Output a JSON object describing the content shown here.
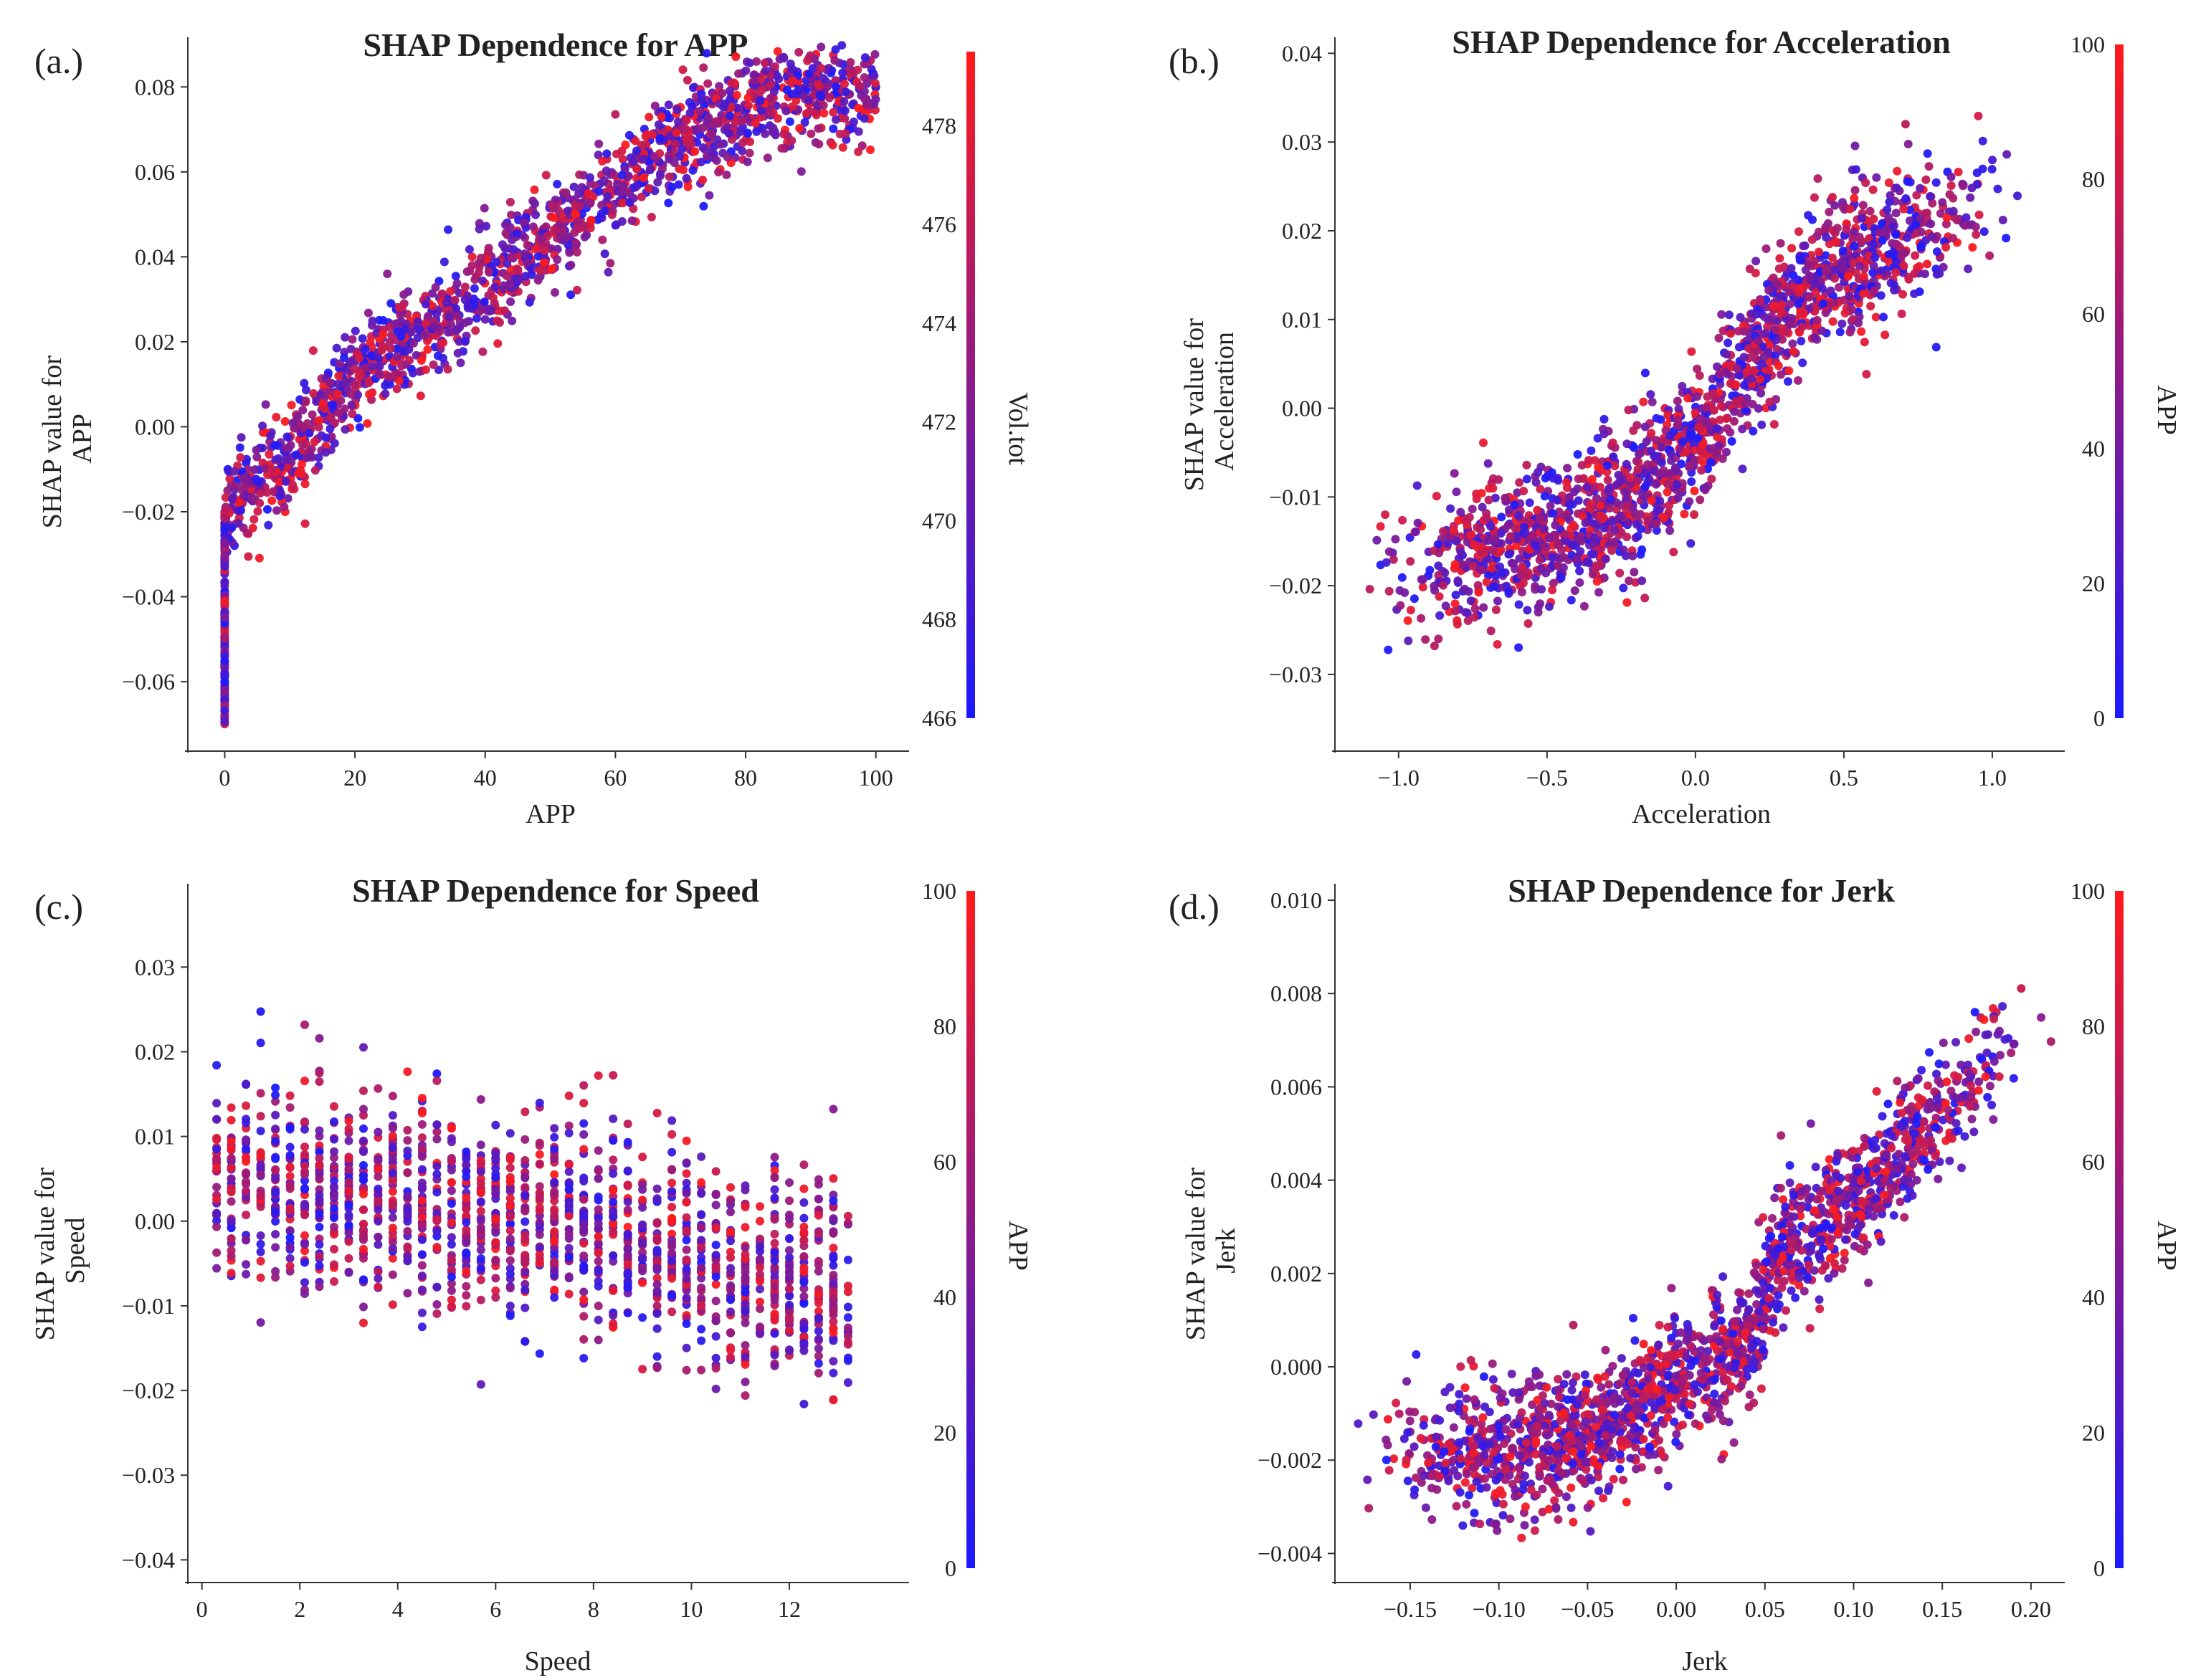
{
  "figure": {
    "colors": {
      "low": "#1a1aff",
      "mid": "#8b1a8b",
      "high": "#ff1a1a",
      "axis": "#333333"
    }
  },
  "chart_data": [
    {
      "type": "scatter",
      "panel": "(a.)",
      "title": "SHAP Dependence for APP",
      "xlabel": "APP",
      "ylabel": [
        "SHAP value for",
        "APP"
      ],
      "xlim": [
        -5,
        104
      ],
      "ylim": [
        -0.075,
        0.09
      ],
      "xticks": [
        "0",
        "20",
        "40",
        "60",
        "80",
        "100"
      ],
      "xtick_values": [
        0,
        20,
        40,
        60,
        80,
        100
      ],
      "yticks": [
        "−0.06",
        "−0.04",
        "−0.02",
        "0.00",
        "0.02",
        "0.04",
        "0.06",
        "0.08"
      ],
      "ytick_values": [
        -0.06,
        -0.04,
        -0.02,
        0.0,
        0.02,
        0.04,
        0.06,
        0.08
      ],
      "colorbar": {
        "label": "Vol.tot",
        "range": [
          466,
          479.5
        ],
        "ticks": [
          "466",
          "468",
          "470",
          "472",
          "474",
          "476",
          "478"
        ],
        "tick_values": [
          466,
          468,
          470,
          472,
          474,
          476,
          478
        ]
      },
      "trend": [
        [
          0,
          -0.022
        ],
        [
          2,
          -0.016
        ],
        [
          10,
          -0.008
        ],
        [
          15,
          0.003
        ],
        [
          20,
          0.012
        ],
        [
          30,
          0.022
        ],
        [
          40,
          0.033
        ],
        [
          50,
          0.045
        ],
        [
          60,
          0.056
        ],
        [
          70,
          0.068
        ],
        [
          80,
          0.076
        ],
        [
          90,
          0.079
        ],
        [
          100,
          0.08
        ]
      ],
      "spread": 0.006,
      "n": 1800
    },
    {
      "type": "scatter",
      "panel": "(b.)",
      "title": "SHAP Dependence for Acceleration",
      "xlabel": "Acceleration",
      "ylabel": [
        "SHAP value for",
        "Acceleration"
      ],
      "xlim": [
        -1.2,
        1.22
      ],
      "ylim": [
        -0.038,
        0.041
      ],
      "xticks": [
        "−1.0",
        "−0.5",
        "0.0",
        "0.5",
        "1.0"
      ],
      "xtick_values": [
        -1.0,
        -0.5,
        0.0,
        0.5,
        1.0
      ],
      "yticks": [
        "−0.03",
        "−0.02",
        "−0.01",
        "0.00",
        "0.01",
        "0.02",
        "0.03",
        "0.04"
      ],
      "ytick_values": [
        -0.03,
        -0.02,
        -0.01,
        0.0,
        0.01,
        0.02,
        0.03,
        0.04
      ],
      "colorbar": {
        "label": "APP",
        "range": [
          0,
          100
        ],
        "ticks": [
          "0",
          "20",
          "40",
          "60",
          "80",
          "100"
        ],
        "tick_values": [
          0,
          20,
          40,
          60,
          80,
          100
        ]
      },
      "trend": [
        [
          -1.1,
          -0.02
        ],
        [
          -0.7,
          -0.016
        ],
        [
          -0.4,
          -0.014
        ],
        [
          -0.2,
          -0.01
        ],
        [
          0.0,
          -0.004
        ],
        [
          0.15,
          0.004
        ],
        [
          0.3,
          0.011
        ],
        [
          0.5,
          0.016
        ],
        [
          0.8,
          0.02
        ],
        [
          1.05,
          0.026
        ]
      ],
      "spread": 0.004,
      "n": 1800
    },
    {
      "type": "scatter",
      "panel": "(c.)",
      "title": "SHAP Dependence for Speed",
      "xlabel": "Speed",
      "ylabel": [
        "SHAP value for",
        "Speed"
      ],
      "xlim": [
        -0.2,
        14.3
      ],
      "ylim": [
        -0.042,
        0.039
      ],
      "xticks": [
        "0",
        "2",
        "4",
        "6",
        "8",
        "10",
        "12"
      ],
      "xtick_values": [
        0,
        2,
        4,
        6,
        8,
        10,
        12
      ],
      "yticks": [
        "−0.04",
        "−0.03",
        "−0.02",
        "−0.01",
        "0.00",
        "0.01",
        "0.02",
        "0.03"
      ],
      "ytick_values": [
        -0.04,
        -0.03,
        -0.02,
        -0.01,
        0.0,
        0.01,
        0.02,
        0.03
      ],
      "colorbar": {
        "label": "APP",
        "range": [
          0,
          100
        ],
        "ticks": [
          "0",
          "20",
          "40",
          "60",
          "80",
          "100"
        ],
        "tick_values": [
          0,
          20,
          40,
          60,
          80,
          100
        ]
      },
      "trend": [
        [
          0.3,
          0.004
        ],
        [
          3,
          0.003
        ],
        [
          4,
          0.002
        ],
        [
          7,
          0.0
        ],
        [
          10,
          -0.004
        ],
        [
          10.5,
          -0.006
        ],
        [
          13,
          -0.008
        ]
      ],
      "spread": 0.006,
      "n": 1600
    },
    {
      "type": "scatter",
      "panel": "(d.)",
      "title": "SHAP Dependence for Jerk",
      "xlabel": "Jerk",
      "ylabel": [
        "SHAP value for",
        "Jerk"
      ],
      "xlim": [
        -0.19,
        0.215
      ],
      "ylim": [
        -0.0045,
        0.0102
      ],
      "xticks": [
        "−0.15",
        "−0.10",
        "−0.05",
        "0.00",
        "0.05",
        "0.10",
        "0.15",
        "0.20"
      ],
      "xtick_values": [
        -0.15,
        -0.1,
        -0.05,
        0.0,
        0.05,
        0.1,
        0.15,
        0.2
      ],
      "yticks": [
        "−0.004",
        "−0.002",
        "0.000",
        "0.002",
        "0.004",
        "0.006",
        "0.008",
        "0.010"
      ],
      "ytick_values": [
        -0.004,
        -0.002,
        0.0,
        0.002,
        0.004,
        0.006,
        0.008,
        0.01
      ],
      "colorbar": {
        "label": "APP",
        "range": [
          0,
          100
        ],
        "ticks": [
          "0",
          "20",
          "40",
          "60",
          "80",
          "100"
        ],
        "tick_values": [
          0,
          20,
          40,
          60,
          80,
          100
        ]
      },
      "trend": [
        [
          -0.17,
          -0.0015
        ],
        [
          -0.12,
          -0.002
        ],
        [
          -0.05,
          -0.0015
        ],
        [
          0.0,
          -0.0003
        ],
        [
          0.04,
          0.0005
        ],
        [
          0.06,
          0.0025
        ],
        [
          0.1,
          0.0035
        ],
        [
          0.15,
          0.0055
        ],
        [
          0.2,
          0.008
        ]
      ],
      "spread": 0.0007,
      "n": 1800
    }
  ]
}
